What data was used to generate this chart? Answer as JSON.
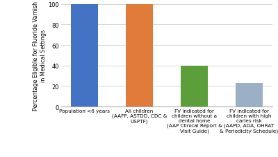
{
  "categories": [
    "Population <6 years",
    "All children\n(AAFP, ASTDD, CDC &\nUSPTF)",
    "FV indicated for\nchildren without a\ndental home\n(AAP Clinical Report &\nVisit Guide)",
    "FV indicated for\nchildren with high\ncaries risk\n(AAPD, ADA, OHRAT\n& Periodicity Schedule)"
  ],
  "values": [
    100,
    100,
    40,
    23
  ],
  "bar_colors": [
    "#4472C4",
    "#E07B39",
    "#5B9E3A",
    "#9BAFC5"
  ],
  "ylabel": "Percentage Eligible for Fluoride Varnish\nin Medical Settings",
  "ylim": [
    0,
    100
  ],
  "yticks": [
    0,
    20,
    40,
    60,
    80,
    100
  ],
  "background_color": "#ffffff",
  "bar_width": 0.5,
  "grid_color": "#d0d0d0",
  "spine_color": "#aaaaaa",
  "ylabel_fontsize": 5.8,
  "tick_fontsize": 6.0,
  "xtick_fontsize": 5.2
}
